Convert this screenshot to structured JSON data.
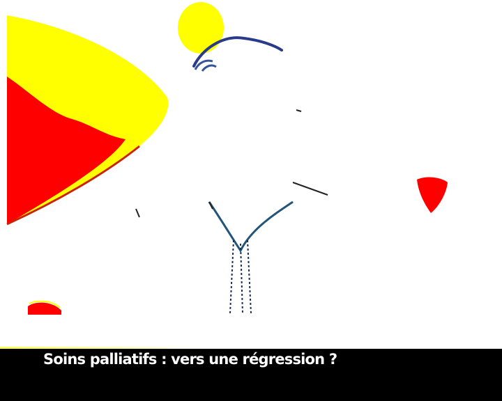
{
  "caption": {
    "headline": "Soins palliatifs : vers une régression ?"
  },
  "colors": {
    "lamp_yellow": "#ffff00",
    "lamp_red": "#ff0000",
    "banner_background": "#000000",
    "banner_text": "#ffffff"
  }
}
